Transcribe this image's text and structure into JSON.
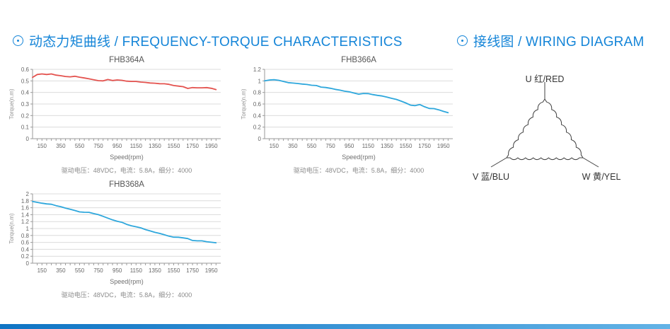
{
  "theme": {
    "accent": "#1585d8"
  },
  "sections": {
    "charts": {
      "title": "动态力矩曲线 / FREQUENCY-TORQUE CHARACTERISTICS",
      "icon": "circle-dot-icon"
    },
    "wiring": {
      "title": "接线图 / WIRING DIAGRAM",
      "icon": "circle-dot-icon"
    }
  },
  "chart_data": [
    {
      "type": "line",
      "title": "FHB364A",
      "xlabel": "Speed(rpm)",
      "ylabel": "Torque(n.m)",
      "caption": "驱动电压：48VDC，电流：5.8A，细分：4000",
      "xlim": [
        50,
        2050
      ],
      "ylim": [
        0,
        0.6
      ],
      "x_ticks": [
        150,
        350,
        550,
        750,
        950,
        1150,
        1350,
        1550,
        1750,
        1950
      ],
      "y_ticks": [
        0,
        0.1,
        0.2,
        0.3,
        0.4,
        0.5,
        0.6
      ],
      "grid": true,
      "legend": "none",
      "series": [
        {
          "name": "torque",
          "color": "#e4534f",
          "x": [
            50,
            100,
            150,
            200,
            250,
            300,
            350,
            400,
            450,
            500,
            550,
            600,
            650,
            700,
            750,
            800,
            850,
            900,
            950,
            1000,
            1050,
            1100,
            1150,
            1200,
            1250,
            1300,
            1350,
            1400,
            1450,
            1500,
            1550,
            1600,
            1650,
            1700,
            1750,
            1800,
            1850,
            1900,
            1950,
            2000
          ],
          "y": [
            0.53,
            0.555,
            0.56,
            0.555,
            0.56,
            0.55,
            0.545,
            0.538,
            0.535,
            0.54,
            0.532,
            0.525,
            0.518,
            0.51,
            0.502,
            0.5,
            0.512,
            0.503,
            0.508,
            0.505,
            0.498,
            0.495,
            0.495,
            0.49,
            0.487,
            0.482,
            0.48,
            0.476,
            0.475,
            0.47,
            0.46,
            0.455,
            0.45,
            0.435,
            0.442,
            0.44,
            0.44,
            0.442,
            0.436,
            0.425
          ]
        }
      ]
    },
    {
      "type": "line",
      "title": "FHB366A",
      "xlabel": "Speed(rpm)",
      "ylabel": "Torque(n.m)",
      "caption": "驱动电压：48VDC，电流：5.8A，细分：4000",
      "xlim": [
        50,
        2050
      ],
      "ylim": [
        0,
        1.2
      ],
      "x_ticks": [
        150,
        350,
        550,
        750,
        950,
        1150,
        1350,
        1550,
        1750,
        1950
      ],
      "y_ticks": [
        0,
        0.2,
        0.4,
        0.6,
        0.8,
        1,
        1.2
      ],
      "grid": true,
      "legend": "none",
      "series": [
        {
          "name": "torque",
          "color": "#2ea7dc",
          "x": [
            50,
            100,
            150,
            200,
            250,
            300,
            350,
            400,
            450,
            500,
            550,
            600,
            650,
            700,
            750,
            800,
            850,
            900,
            950,
            1000,
            1050,
            1100,
            1150,
            1200,
            1250,
            1300,
            1350,
            1400,
            1450,
            1500,
            1550,
            1600,
            1650,
            1700,
            1750,
            1800,
            1850,
            1900,
            1950,
            2000
          ],
          "y": [
            1.0,
            1.015,
            1.02,
            1.01,
            0.99,
            0.97,
            0.962,
            0.955,
            0.945,
            0.938,
            0.925,
            0.92,
            0.893,
            0.885,
            0.872,
            0.853,
            0.84,
            0.822,
            0.81,
            0.79,
            0.77,
            0.783,
            0.78,
            0.763,
            0.75,
            0.738,
            0.72,
            0.698,
            0.68,
            0.65,
            0.618,
            0.58,
            0.572,
            0.59,
            0.552,
            0.523,
            0.52,
            0.5,
            0.473,
            0.45
          ]
        }
      ]
    },
    {
      "type": "line",
      "title": "FHB368A",
      "xlabel": "Speed(rpm)",
      "ylabel": "Torque(n.m)",
      "caption": "驱动电压：48VDC，电流：5.8A，细分：4000",
      "xlim": [
        50,
        2050
      ],
      "ylim": [
        0,
        2
      ],
      "x_ticks": [
        150,
        350,
        550,
        750,
        950,
        1150,
        1350,
        1550,
        1750,
        1950
      ],
      "y_ticks": [
        0,
        0.2,
        0.4,
        0.6,
        0.8,
        1,
        1.2,
        1.4,
        1.6,
        1.8,
        2
      ],
      "grid": true,
      "legend": "none",
      "series": [
        {
          "name": "torque",
          "color": "#2ea7dc",
          "x": [
            50,
            100,
            150,
            200,
            250,
            300,
            350,
            400,
            450,
            500,
            550,
            600,
            650,
            700,
            750,
            800,
            850,
            900,
            950,
            1000,
            1050,
            1100,
            1150,
            1200,
            1250,
            1300,
            1350,
            1400,
            1450,
            1500,
            1550,
            1600,
            1650,
            1700,
            1750,
            1800,
            1850,
            1900,
            1950,
            2000
          ],
          "y": [
            1.78,
            1.755,
            1.73,
            1.71,
            1.7,
            1.66,
            1.63,
            1.59,
            1.555,
            1.52,
            1.48,
            1.47,
            1.468,
            1.43,
            1.4,
            1.35,
            1.3,
            1.25,
            1.21,
            1.18,
            1.12,
            1.08,
            1.05,
            1.02,
            0.97,
            0.93,
            0.89,
            0.86,
            0.82,
            0.78,
            0.752,
            0.75,
            0.73,
            0.71,
            0.655,
            0.645,
            0.645,
            0.62,
            0.605,
            0.59
          ]
        }
      ]
    }
  ],
  "wiring": {
    "diagram": "delta-winding",
    "line_color": "#404040",
    "terminals": [
      {
        "id": "U",
        "label": "U 红/RED"
      },
      {
        "id": "V",
        "label": "V 蓝/BLU"
      },
      {
        "id": "W",
        "label": "W 黄/YEL"
      }
    ]
  },
  "footer": {
    "gradient": [
      "#0f74c4",
      "#63b3e6"
    ]
  }
}
